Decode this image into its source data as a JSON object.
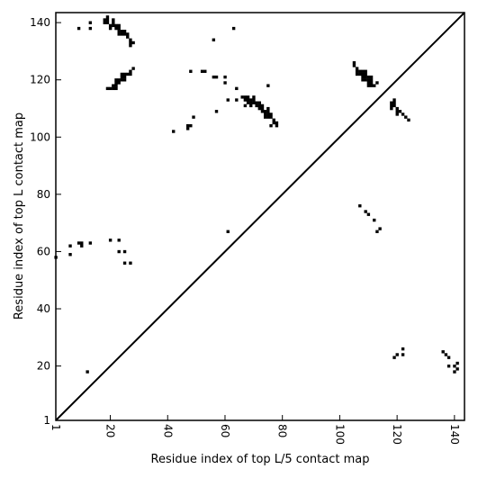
{
  "chart_data": {
    "type": "scatter",
    "marker": "square",
    "color": "#000000",
    "xlabel": "Residue index of top L/5 contact map",
    "ylabel": "Residue index of top L contact map",
    "xlim": [
      1,
      143.5
    ],
    "ylim": [
      1,
      143.5
    ],
    "x_ticks": [
      1,
      20,
      40,
      60,
      80,
      100,
      120,
      140
    ],
    "y_ticks": [
      1,
      20,
      40,
      60,
      80,
      100,
      120,
      140
    ],
    "x_tick_labels": [
      "1",
      "20",
      "40",
      "60",
      "80",
      "100",
      "120",
      "140"
    ],
    "y_tick_labels": [
      "1",
      "20",
      "40",
      "60",
      "80",
      "100",
      "120",
      "140"
    ],
    "x_tick_rotation": 90,
    "grid": false,
    "diagonal_line": true,
    "upper_triangle_points": [
      [
        9,
        138
      ],
      [
        13,
        140
      ],
      [
        13,
        138
      ],
      [
        18,
        141
      ],
      [
        18,
        140
      ],
      [
        19,
        142
      ],
      [
        19,
        141
      ],
      [
        19,
        140
      ],
      [
        20,
        139
      ],
      [
        20,
        138
      ],
      [
        21,
        141
      ],
      [
        21,
        140
      ],
      [
        21,
        139
      ],
      [
        22,
        139
      ],
      [
        22,
        138
      ],
      [
        23,
        139
      ],
      [
        23,
        138
      ],
      [
        23,
        137
      ],
      [
        23,
        136
      ],
      [
        24,
        137
      ],
      [
        24,
        136
      ],
      [
        25,
        137
      ],
      [
        25,
        136
      ],
      [
        26,
        135
      ],
      [
        26,
        136
      ],
      [
        27,
        134
      ],
      [
        27,
        133
      ],
      [
        27,
        132
      ],
      [
        28,
        133
      ],
      [
        19,
        117
      ],
      [
        20,
        117
      ],
      [
        21,
        117
      ],
      [
        21,
        118
      ],
      [
        22,
        117
      ],
      [
        22,
        118
      ],
      [
        22,
        119
      ],
      [
        22,
        120
      ],
      [
        23,
        119
      ],
      [
        23,
        120
      ],
      [
        24,
        120
      ],
      [
        24,
        121
      ],
      [
        24,
        122
      ],
      [
        25,
        120
      ],
      [
        25,
        121
      ],
      [
        25,
        122
      ],
      [
        26,
        122
      ],
      [
        27,
        122
      ],
      [
        27,
        123
      ],
      [
        28,
        124
      ],
      [
        42,
        102
      ],
      [
        47,
        103
      ],
      [
        47,
        104
      ],
      [
        48,
        104
      ],
      [
        48,
        123
      ],
      [
        49,
        107
      ],
      [
        52,
        123
      ],
      [
        53,
        123
      ],
      [
        56,
        134
      ],
      [
        56,
        121
      ],
      [
        57,
        121
      ],
      [
        57,
        109
      ],
      [
        60,
        121
      ],
      [
        60,
        119
      ],
      [
        61,
        113
      ],
      [
        63,
        138
      ],
      [
        64,
        117
      ],
      [
        64,
        113
      ],
      [
        66,
        114
      ],
      [
        67,
        114
      ],
      [
        67,
        113
      ],
      [
        67,
        111
      ],
      [
        68,
        114
      ],
      [
        68,
        113
      ],
      [
        68,
        112
      ],
      [
        69,
        113
      ],
      [
        69,
        112
      ],
      [
        69,
        111
      ],
      [
        70,
        114
      ],
      [
        70,
        113
      ],
      [
        70,
        112
      ],
      [
        71,
        112
      ],
      [
        71,
        111
      ],
      [
        72,
        112
      ],
      [
        72,
        111
      ],
      [
        72,
        110
      ],
      [
        73,
        111
      ],
      [
        73,
        110
      ],
      [
        73,
        109
      ],
      [
        74,
        109
      ],
      [
        74,
        108
      ],
      [
        74,
        107
      ],
      [
        75,
        110
      ],
      [
        75,
        109
      ],
      [
        75,
        108
      ],
      [
        75,
        107
      ],
      [
        75,
        118
      ],
      [
        76,
        108
      ],
      [
        76,
        107
      ],
      [
        76,
        104
      ],
      [
        77,
        106
      ],
      [
        77,
        105
      ],
      [
        78,
        105
      ],
      [
        78,
        104
      ],
      [
        105,
        126
      ],
      [
        105,
        125
      ],
      [
        106,
        124
      ],
      [
        106,
        123
      ],
      [
        106,
        122
      ],
      [
        107,
        123
      ],
      [
        107,
        122
      ],
      [
        108,
        123
      ],
      [
        108,
        122
      ],
      [
        108,
        121
      ],
      [
        108,
        120
      ],
      [
        109,
        123
      ],
      [
        109,
        122
      ],
      [
        109,
        121
      ],
      [
        109,
        120
      ],
      [
        110,
        121
      ],
      [
        110,
        120
      ],
      [
        110,
        119
      ],
      [
        110,
        118
      ],
      [
        111,
        121
      ],
      [
        111,
        120
      ],
      [
        111,
        119
      ],
      [
        111,
        118
      ],
      [
        112,
        118
      ],
      [
        113,
        119
      ],
      [
        118,
        112
      ],
      [
        118,
        111
      ],
      [
        118,
        110
      ],
      [
        119,
        113
      ],
      [
        119,
        112
      ],
      [
        119,
        111
      ],
      [
        120,
        110
      ],
      [
        120,
        109
      ],
      [
        120,
        108
      ],
      [
        121,
        109
      ],
      [
        122,
        108
      ],
      [
        123,
        107
      ],
      [
        124,
        106
      ]
    ],
    "lower_triangle_points": [
      [
        1,
        58
      ],
      [
        6,
        62
      ],
      [
        6,
        59
      ],
      [
        9,
        63
      ],
      [
        10,
        63
      ],
      [
        10,
        62
      ],
      [
        12,
        18
      ],
      [
        13,
        63
      ],
      [
        20,
        64
      ],
      [
        23,
        64
      ],
      [
        23,
        60
      ],
      [
        25,
        60
      ],
      [
        25,
        56
      ],
      [
        27,
        56
      ],
      [
        61,
        67
      ],
      [
        107,
        76
      ],
      [
        109,
        74
      ],
      [
        110,
        73
      ],
      [
        112,
        71
      ],
      [
        113,
        67
      ],
      [
        114,
        68
      ],
      [
        119,
        23
      ],
      [
        120,
        24
      ],
      [
        122,
        26
      ],
      [
        122,
        24
      ],
      [
        136,
        25
      ],
      [
        137,
        24
      ],
      [
        138,
        23
      ],
      [
        138,
        20
      ],
      [
        140,
        20
      ],
      [
        140,
        18
      ],
      [
        141,
        21
      ],
      [
        141,
        19
      ]
    ]
  }
}
